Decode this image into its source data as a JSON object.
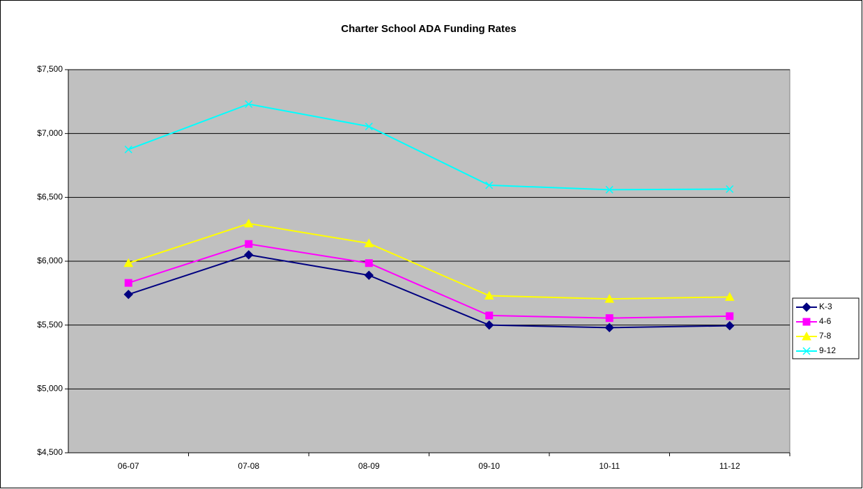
{
  "chart_data": {
    "type": "line",
    "title": "Charter School ADA Funding Rates",
    "categories": [
      "06-07",
      "07-08",
      "08-09",
      "09-10",
      "10-11",
      "11-12"
    ],
    "series": [
      {
        "name": "K-3",
        "color": "#000080",
        "marker": "diamond",
        "values": [
          5740,
          6050,
          5890,
          5500,
          5480,
          5495
        ]
      },
      {
        "name": "4-6",
        "color": "#FF00FF",
        "marker": "square",
        "values": [
          5830,
          6135,
          5985,
          5575,
          5555,
          5570
        ]
      },
      {
        "name": "7-8",
        "color": "#FFFF00",
        "marker": "triangle",
        "values": [
          5985,
          6295,
          6140,
          5730,
          5705,
          5720
        ]
      },
      {
        "name": "9-12",
        "color": "#00FFFF",
        "marker": "x",
        "values": [
          6875,
          7230,
          7055,
          6595,
          6560,
          6565
        ]
      }
    ],
    "ylim": [
      4500,
      7500
    ],
    "yticks": [
      {
        "value": 4500,
        "label": "$4,500"
      },
      {
        "value": 5000,
        "label": "$5,000"
      },
      {
        "value": 5500,
        "label": "$5,500"
      },
      {
        "value": 6000,
        "label": "$6,000"
      },
      {
        "value": 6500,
        "label": "$6,500"
      },
      {
        "value": 7000,
        "label": "$7,000"
      },
      {
        "value": 7500,
        "label": "$7,500"
      }
    ],
    "grid": true,
    "legend": "right",
    "plot_background": "#C0C0C0"
  }
}
